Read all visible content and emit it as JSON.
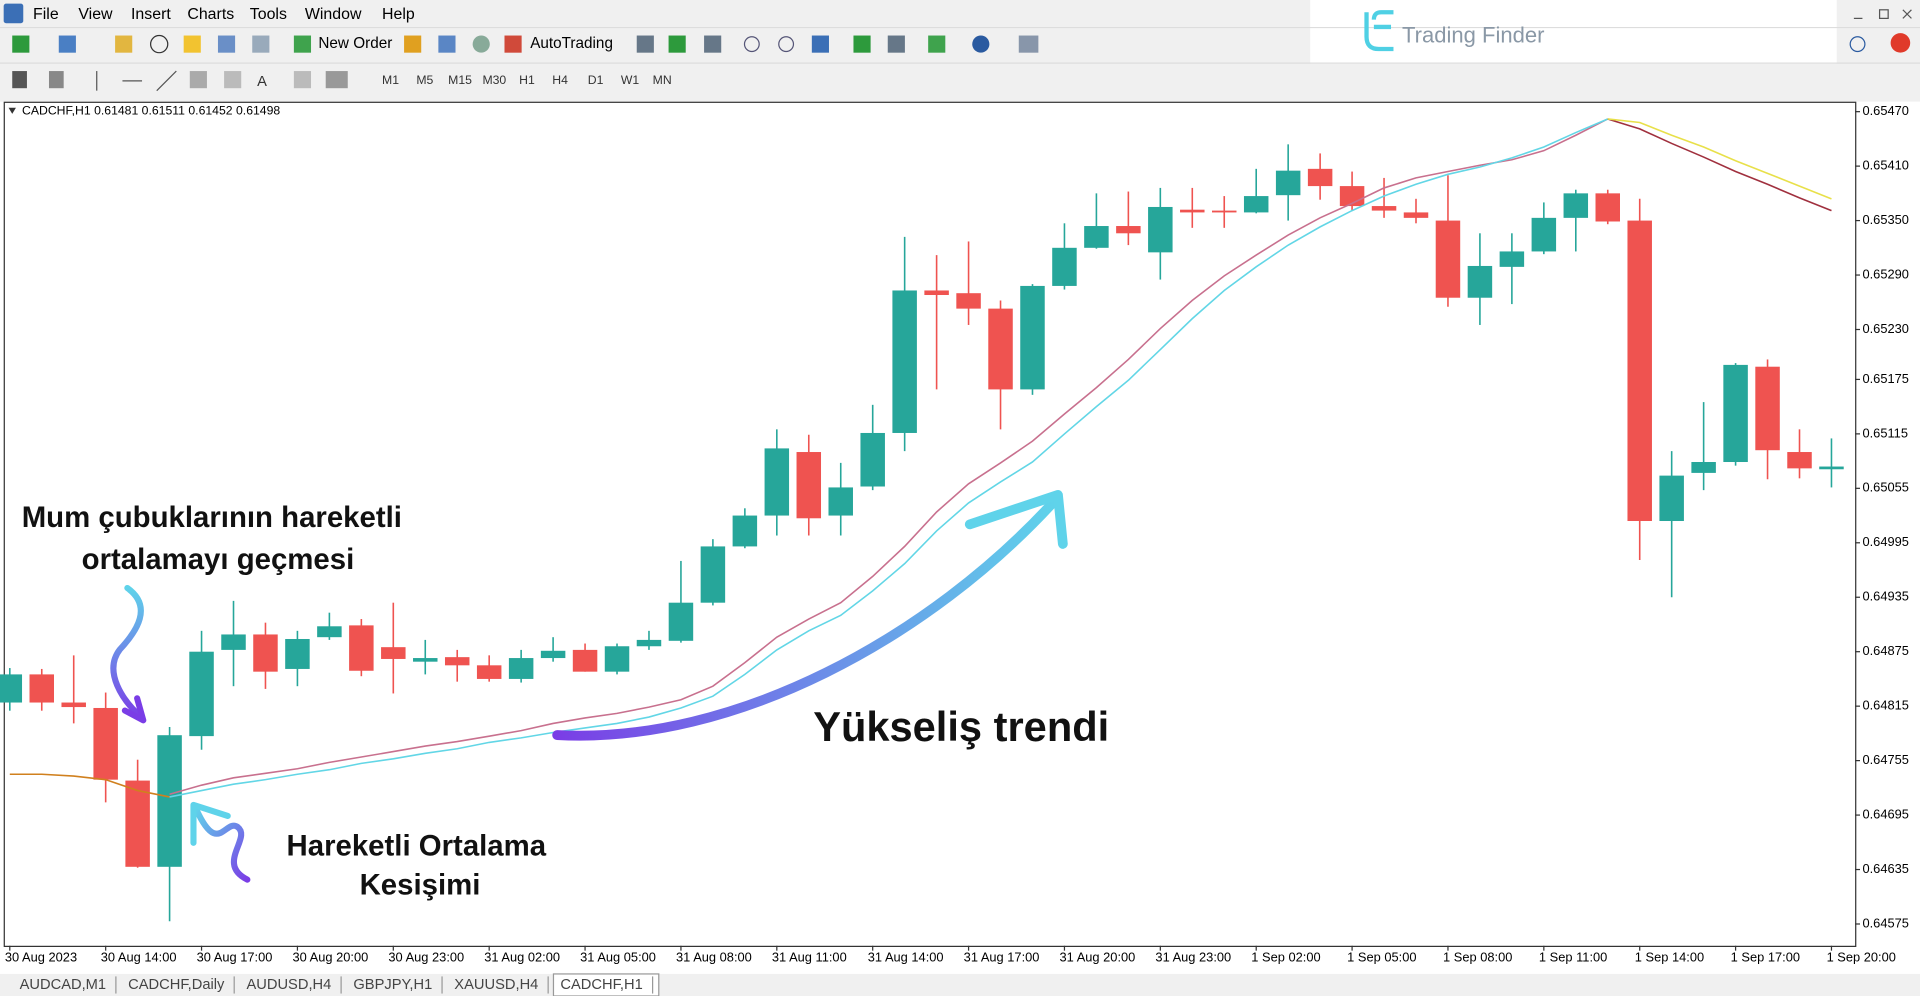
{
  "window": {
    "menu": [
      "File",
      "View",
      "Insert",
      "Charts",
      "Tools",
      "Window",
      "Help"
    ],
    "toolbar": {
      "new_order": "New Order",
      "auto_trading": "AutoTrading",
      "timeframes": [
        "M1",
        "M5",
        "M15",
        "M30",
        "H1",
        "H4",
        "D1",
        "W1",
        "MN"
      ]
    },
    "brand": "Trading Finder"
  },
  "chart": {
    "type": "candlestick",
    "header": "CADCHF,H1  0.61481 0.61511 0.61452 0.61498",
    "up_color": "#26a69a",
    "down_color": "#ef5350",
    "ylim": [
      0.64551,
      0.65481
    ],
    "yticks": [
      {
        "value": 0.6547,
        "label": "0.65470"
      },
      {
        "value": 0.6541,
        "label": "0.65410"
      },
      {
        "value": 0.6535,
        "label": "0.65350"
      },
      {
        "value": 0.6529,
        "label": "0.65290"
      },
      {
        "value": 0.6523,
        "label": "0.65230"
      },
      0.65175,
      0.65115,
      0.65055,
      0.64995,
      0.64935,
      0.64875,
      0.64815,
      0.64755,
      0.64695,
      0.64635,
      0.64575
    ],
    "categories": [
      "30 Aug 2023",
      null,
      null,
      "30 Aug 14:00",
      null,
      null,
      "30 Aug 17:00",
      null,
      null,
      "30 Aug 20:00",
      null,
      null,
      "30 Aug 23:00",
      null,
      null,
      "31 Aug 02:00",
      null,
      null,
      "31 Aug 05:00",
      null,
      null,
      "31 Aug 08:00",
      null,
      null,
      "31 Aug 11:00",
      null,
      null,
      "31 Aug 14:00",
      null,
      null,
      "31 Aug 17:00",
      null,
      null,
      "31 Aug 20:00",
      null,
      null,
      "31 Aug 23:00",
      null,
      null,
      "1 Sep 02:00",
      null,
      null,
      "1 Sep 05:00",
      null,
      null,
      "1 Sep 08:00",
      null,
      null,
      "1 Sep 11:00",
      null,
      null,
      "1 Sep 14:00",
      null,
      null,
      "1 Sep 17:00",
      null,
      null,
      "1 Sep 20:00"
    ],
    "open": [
      0.64819,
      0.6485,
      0.64819,
      0.64813,
      0.64733,
      0.64638,
      0.64782,
      0.64877,
      0.64894,
      0.64856,
      0.64891,
      0.64904,
      0.6488,
      0.64864,
      0.64869,
      0.6486,
      0.64845,
      0.64868,
      0.64877,
      0.64853,
      0.64881,
      0.64887,
      0.64929,
      0.64991,
      0.65025,
      0.65095,
      0.65025,
      0.65057,
      0.65116,
      0.65273,
      0.6527,
      0.65253,
      0.65164,
      0.65278,
      0.6532,
      0.65344,
      0.65315,
      0.65362,
      0.65361,
      0.65359,
      0.65378,
      0.65407,
      0.65388,
      0.65366,
      0.65359,
      0.6535,
      0.65265,
      0.65299,
      0.65316,
      0.65353,
      0.6538,
      0.6535,
      0.65019,
      0.65072,
      0.65084,
      0.65189,
      0.65095,
      0.65076
    ],
    "high": [
      0.64857,
      0.64856,
      0.64871,
      0.6483,
      0.64756,
      0.64792,
      0.64898,
      0.64931,
      0.64907,
      0.64898,
      0.64918,
      0.64911,
      0.64929,
      0.64888,
      0.64877,
      0.64871,
      0.64877,
      0.64891,
      0.64884,
      0.64884,
      0.64898,
      0.64975,
      0.64999,
      0.65033,
      0.6512,
      0.65114,
      0.65083,
      0.65147,
      0.65332,
      0.65312,
      0.65327,
      0.65262,
      0.6528,
      0.65347,
      0.6538,
      0.65382,
      0.65386,
      0.65386,
      0.65377,
      0.65407,
      0.65434,
      0.65424,
      0.65404,
      0.65397,
      0.65374,
      0.654,
      0.65336,
      0.65336,
      0.6537,
      0.65384,
      0.65384,
      0.65374,
      0.65096,
      0.6515,
      0.65193,
      0.65197,
      0.6512,
      0.6511
    ],
    "low": [
      0.6481,
      0.6481,
      0.64796,
      0.64709,
      0.64637,
      0.64578,
      0.64767,
      0.64837,
      0.64834,
      0.64837,
      0.64888,
      0.64848,
      0.64829,
      0.6485,
      0.64842,
      0.64842,
      0.64841,
      0.64864,
      0.64853,
      0.6485,
      0.64877,
      0.64885,
      0.64926,
      0.64989,
      0.65003,
      0.65003,
      0.65003,
      0.65053,
      0.65096,
      0.65164,
      0.65235,
      0.6512,
      0.65158,
      0.65274,
      0.65319,
      0.65323,
      0.65285,
      0.65342,
      0.65342,
      0.65358,
      0.6535,
      0.65373,
      0.65361,
      0.65353,
      0.65347,
      0.65255,
      0.65235,
      0.65258,
      0.65313,
      0.65316,
      0.65346,
      0.64976,
      0.64935,
      0.65053,
      0.6508,
      0.65065,
      0.65066,
      0.65056
    ],
    "close": [
      0.6485,
      0.64819,
      0.64814,
      0.64734,
      0.64638,
      0.64783,
      0.64875,
      0.64894,
      0.64853,
      0.64889,
      0.64903,
      0.64854,
      0.64867,
      0.64868,
      0.6486,
      0.64845,
      0.64868,
      0.64876,
      0.64853,
      0.64881,
      0.64888,
      0.64929,
      0.64991,
      0.65025,
      0.65099,
      0.65022,
      0.65056,
      0.65116,
      0.65273,
      0.65268,
      0.65253,
      0.65164,
      0.65278,
      0.6532,
      0.65344,
      0.65336,
      0.65365,
      0.65359,
      0.65359,
      0.65377,
      0.65405,
      0.65388,
      0.65366,
      0.65361,
      0.65353,
      0.65265,
      0.653,
      0.65316,
      0.65353,
      0.6538,
      0.65349,
      0.65019,
      0.65069,
      0.65084,
      0.65191,
      0.65097,
      0.65077,
      0.65079
    ],
    "lines": [
      {
        "color": "#d0801e",
        "values": [
          0.6474,
          0.6474,
          0.64738,
          0.64734,
          0.64722,
          0.64715,
          null,
          null,
          null,
          null,
          null,
          null,
          null,
          null,
          null,
          null,
          null,
          null,
          null,
          null,
          null,
          null,
          null,
          null,
          null,
          null,
          null,
          null,
          null,
          null,
          null,
          null,
          null,
          null,
          null,
          null,
          null,
          null,
          null,
          null,
          null,
          null,
          null,
          null,
          null,
          null,
          null,
          null,
          null,
          null,
          null,
          null,
          null,
          null,
          null,
          null,
          null,
          null
        ]
      },
      {
        "color": "#c8708e",
        "values": [
          null,
          null,
          null,
          null,
          null,
          0.64718,
          0.64728,
          0.64736,
          0.64741,
          0.64746,
          0.64753,
          0.64759,
          0.64765,
          0.64771,
          0.64776,
          0.64782,
          0.64788,
          0.64796,
          0.64802,
          0.64807,
          0.64814,
          0.64822,
          0.64837,
          0.64863,
          0.64891,
          0.64911,
          0.64929,
          0.64958,
          0.64991,
          0.65029,
          0.6506,
          0.65083,
          0.65107,
          0.65137,
          0.65166,
          0.65197,
          0.65231,
          0.65262,
          0.65289,
          0.65312,
          0.65334,
          0.65353,
          0.65369,
          0.65386,
          0.65397,
          0.65404,
          0.65411,
          0.65417,
          0.65427,
          0.65444,
          0.65462,
          null,
          null,
          null,
          null,
          null,
          null,
          null
        ]
      },
      {
        "color": "#62d6e6",
        "values": [
          null,
          null,
          null,
          null,
          null,
          0.64715,
          0.64722,
          0.64729,
          0.64734,
          0.6474,
          0.64745,
          0.64752,
          0.64757,
          0.64763,
          0.64768,
          0.64775,
          0.6478,
          0.64786,
          0.64791,
          0.64796,
          0.64803,
          0.64813,
          0.64826,
          0.6485,
          0.64877,
          0.64898,
          0.64915,
          0.64942,
          0.64972,
          0.65008,
          0.65039,
          0.65062,
          0.65084,
          0.65115,
          0.65145,
          0.65174,
          0.65208,
          0.65242,
          0.65273,
          0.65299,
          0.65323,
          0.65343,
          0.65361,
          0.65377,
          0.6539,
          0.65401,
          0.65409,
          0.65419,
          0.65431,
          0.65447,
          0.65462,
          null,
          null,
          null,
          null,
          null,
          null,
          null
        ]
      },
      {
        "color": "#a0303e",
        "values": [
          null,
          null,
          null,
          null,
          null,
          null,
          null,
          null,
          null,
          null,
          null,
          null,
          null,
          null,
          null,
          null,
          null,
          null,
          null,
          null,
          null,
          null,
          null,
          null,
          null,
          null,
          null,
          null,
          null,
          null,
          null,
          null,
          null,
          null,
          null,
          null,
          null,
          null,
          null,
          null,
          null,
          null,
          null,
          null,
          null,
          null,
          null,
          null,
          null,
          null,
          0.65462,
          0.65451,
          0.65435,
          0.6542,
          0.65404,
          0.6539,
          0.65375,
          0.65361
        ]
      },
      {
        "color": "#e8e04a",
        "values": [
          null,
          null,
          null,
          null,
          null,
          null,
          null,
          null,
          null,
          null,
          null,
          null,
          null,
          null,
          null,
          null,
          null,
          null,
          null,
          null,
          null,
          null,
          null,
          null,
          null,
          null,
          null,
          null,
          null,
          null,
          null,
          null,
          null,
          null,
          null,
          null,
          null,
          null,
          null,
          null,
          null,
          null,
          null,
          null,
          null,
          null,
          null,
          null,
          null,
          null,
          0.65462,
          0.65458,
          0.65444,
          0.65431,
          0.65416,
          0.65402,
          0.65388,
          0.65374
        ]
      }
    ],
    "annotations": [
      {
        "lines": [
          "Mum çubuklarının hareketli",
          "ortalamayı geçmesi"
        ]
      },
      {
        "lines": [
          "Yükseliş trendi"
        ]
      },
      {
        "lines": [
          "Hareketli Ortalama",
          "Kesişimi"
        ]
      }
    ]
  },
  "tabs": [
    "AUDCAD,M1",
    "CADCHF,Daily",
    "AUDUSD,H4",
    "GBPJPY,H1",
    "XAUUSD,H4",
    "CADCHF,H1"
  ]
}
